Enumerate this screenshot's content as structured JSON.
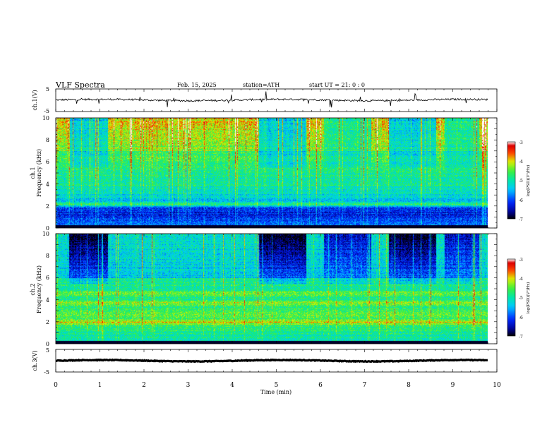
{
  "header": {
    "title": "VLF  Spectra",
    "date": "Feb. 15, 2025",
    "station": "station=ATH",
    "start": "start  UT  =    21: 0   : 0"
  },
  "chart_data": [
    {
      "type": "line",
      "ylabel": "ch.1(V)",
      "ylim": [
        -5,
        5
      ],
      "yticks": [
        "5",
        "-5"
      ],
      "xlim": [
        0,
        10
      ],
      "baseline": 0.1,
      "noise_amplitude": 0.4
    },
    {
      "type": "heatmap",
      "ylabel_top": "ch.1",
      "ylabel": "Frequency  (kHz)",
      "ylim": [
        0,
        10
      ],
      "yticks": [
        "0",
        "2",
        "4",
        "6",
        "8",
        "10"
      ],
      "xlim": [
        0,
        10
      ],
      "colorbar": {
        "label": "log(PSD)(V²/Hz)",
        "ticks": [
          "-3",
          "-4",
          "-5",
          "-6",
          "-7"
        ],
        "range": [
          -7,
          -3
        ]
      },
      "bands": [
        {
          "freq": 2.2,
          "value": -4.6
        },
        {
          "freq": 4.0,
          "value": -4.9
        }
      ]
    },
    {
      "type": "heatmap",
      "ylabel_top": "ch.2",
      "ylabel": "Frequency  (kHz)",
      "ylim": [
        0,
        10
      ],
      "yticks": [
        "0",
        "2",
        "4",
        "6",
        "8",
        "10"
      ],
      "xlim": [
        0,
        10
      ],
      "colorbar": {
        "label": "log(PSD)(V²/Hz)",
        "ticks": [
          "-3",
          "-4",
          "-5",
          "-6",
          "-7"
        ],
        "range": [
          -7,
          -3
        ]
      },
      "bands": [
        {
          "freq": 2.0,
          "value": -3.9
        },
        {
          "freq": 3.7,
          "value": -4.2
        },
        {
          "freq": 4.6,
          "value": -4.3
        }
      ]
    },
    {
      "type": "line",
      "ylabel": "ch.3(V)",
      "ylim": [
        -5,
        5
      ],
      "yticks": [
        "5",
        "-5"
      ],
      "xlim": [
        0,
        10
      ],
      "baseline": 0.0,
      "noise_amplitude": 0.15
    }
  ],
  "xaxis": {
    "label": "Time  (min)",
    "ticks": [
      "0",
      "1",
      "2",
      "3",
      "4",
      "5",
      "6",
      "7",
      "8",
      "9",
      "10"
    ]
  }
}
